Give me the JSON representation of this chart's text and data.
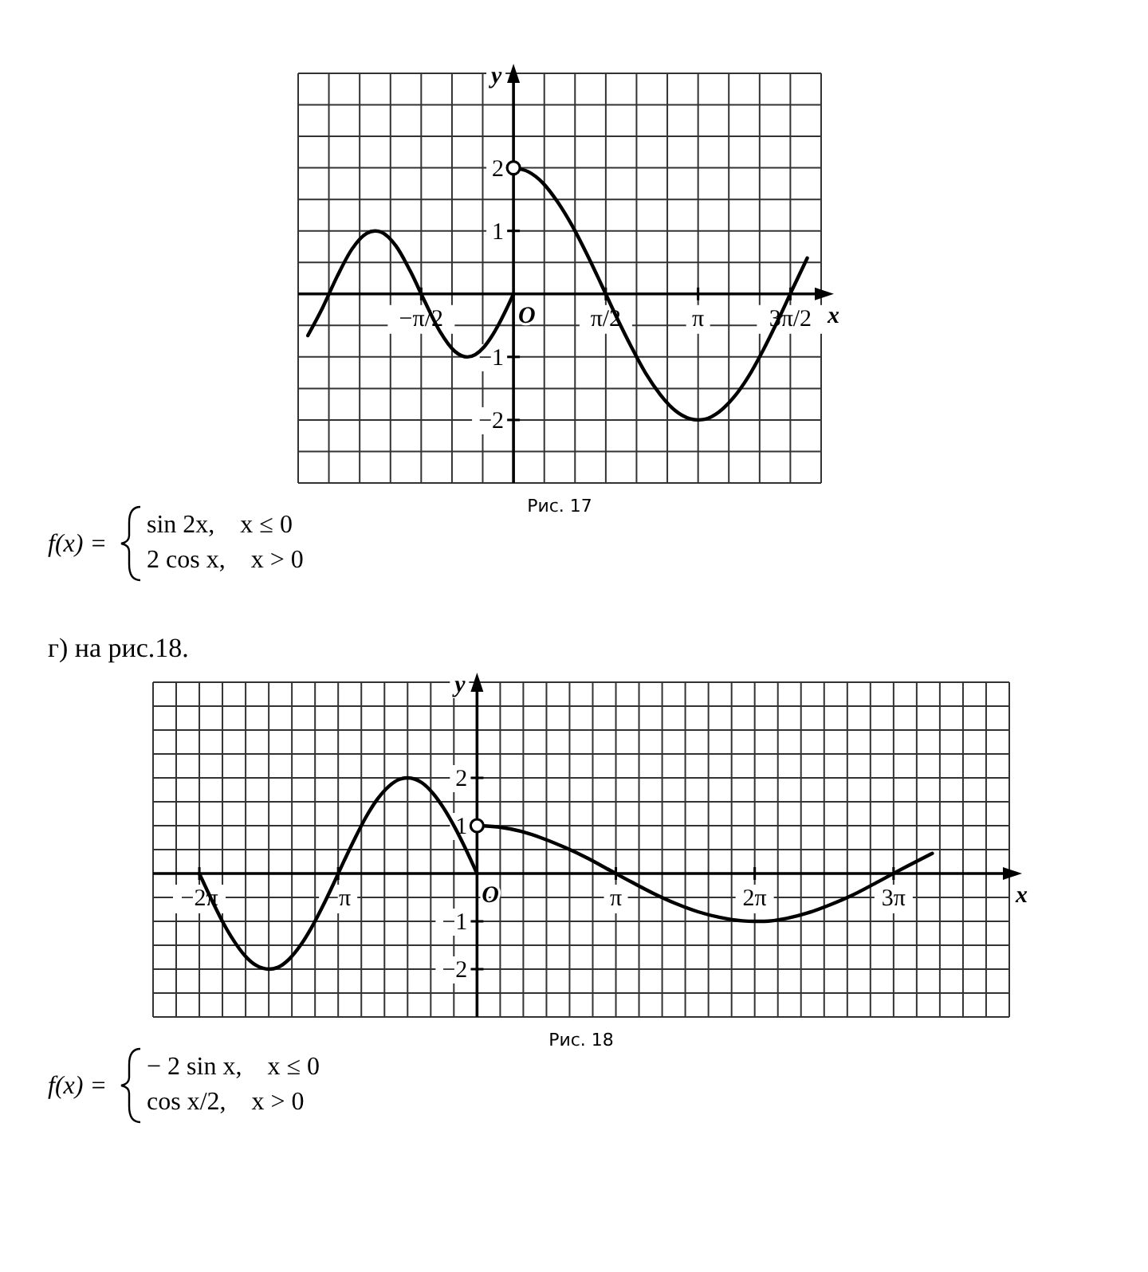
{
  "chart_data": [
    {
      "type": "line",
      "xlabel": "x",
      "ylabel": "y",
      "grid": true,
      "xlim": [
        -3.665,
        5.236
      ],
      "ylim": [
        -3,
        3.5
      ],
      "xticks": [
        {
          "value": -3.665,
          "label": null
        },
        {
          "value": -3.142,
          "label": null
        },
        {
          "value": -2.618,
          "label": null
        },
        {
          "value": -2.094,
          "label": null
        },
        {
          "value": -1.571,
          "label": "−π/2"
        },
        {
          "value": -1.047,
          "label": null
        },
        {
          "value": -0.524,
          "label": null
        },
        {
          "value": 0,
          "label": null
        },
        {
          "value": 0.524,
          "label": null
        },
        {
          "value": 1.047,
          "label": null
        },
        {
          "value": 1.571,
          "label": "π/2"
        },
        {
          "value": 2.094,
          "label": null
        },
        {
          "value": 2.618,
          "label": null
        },
        {
          "value": 3.142,
          "label": "π"
        },
        {
          "value": 3.665,
          "label": null
        },
        {
          "value": 4.189,
          "label": null
        },
        {
          "value": 4.712,
          "label": "3π/2"
        },
        {
          "value": 5.236,
          "label": null
        }
      ],
      "yticks": [
        {
          "value": -3,
          "label": null
        },
        {
          "value": -2.5,
          "label": null
        },
        {
          "value": -2,
          "label": "−2"
        },
        {
          "value": -1.5,
          "label": null
        },
        {
          "value": -1,
          "label": "−1"
        },
        {
          "value": -0.5,
          "label": null
        },
        {
          "value": 0,
          "label": null
        },
        {
          "value": 0.5,
          "label": null
        },
        {
          "value": 1,
          "label": "1"
        },
        {
          "value": 1.5,
          "label": null
        },
        {
          "value": 2,
          "label": "2"
        },
        {
          "value": 2.5,
          "label": null
        },
        {
          "value": 3,
          "label": null
        },
        {
          "value": 3.5,
          "label": null
        }
      ],
      "series": [
        {
          "color": "#000000",
          "x": [
            -3.5,
            -3.25,
            -3.0,
            -2.75,
            -2.5,
            -2.356,
            -2.25,
            -2.0,
            -1.75,
            -1.5,
            -1.25,
            -1.0,
            -0.785,
            -0.5,
            -0.375,
            -0.25,
            -0.125,
            0
          ],
          "values": [
            -0.66,
            -0.22,
            0.28,
            0.71,
            0.96,
            1.0,
            0.98,
            0.76,
            0.35,
            -0.14,
            -0.6,
            -0.91,
            -1.0,
            -0.84,
            -0.68,
            -0.48,
            -0.25,
            0
          ]
        },
        {
          "color": "#000000",
          "x": [
            0,
            0.25,
            0.5,
            0.75,
            1.0,
            1.25,
            1.5,
            1.75,
            2.0,
            2.25,
            2.5,
            2.75,
            3.0,
            3.142,
            3.25,
            3.5,
            3.75,
            4.0,
            4.25,
            4.5,
            4.75,
            5.0
          ],
          "values": [
            2,
            1.94,
            1.76,
            1.46,
            1.08,
            0.63,
            0.14,
            -0.36,
            -0.83,
            -1.26,
            -1.6,
            -1.85,
            -1.98,
            -2,
            -1.99,
            -1.87,
            -1.64,
            -1.31,
            -0.89,
            -0.42,
            0.08,
            0.57
          ]
        },
        {
          "type": "scatter",
          "color": "#000000",
          "x": [
            0
          ],
          "values": [
            2
          ]
        }
      ],
      "annotations": [
        {
          "text": "O",
          "x": 0,
          "y": 0
        },
        "Рис. 17",
        "f(x) =",
        "sin 2x,    x ≤ 0",
        "2 cos x,    x > 0"
      ]
    },
    {
      "type": "line",
      "title": "г) на рис.18.",
      "xlabel": "x",
      "ylabel": "y",
      "grid": true,
      "xlim": [
        -7.33,
        12.043
      ],
      "ylim": [
        -3,
        4
      ],
      "xticks": [
        {
          "value": -7.33,
          "label": null
        },
        {
          "value": -6.807,
          "label": null
        },
        {
          "value": -6.283,
          "label": "−2π"
        },
        {
          "value": -5.76,
          "label": null
        },
        {
          "value": -5.236,
          "label": null
        },
        {
          "value": -4.712,
          "label": null
        },
        {
          "value": -4.189,
          "label": null
        },
        {
          "value": -3.665,
          "label": null
        },
        {
          "value": -3.142,
          "label": "−π"
        },
        {
          "value": -2.618,
          "label": null
        },
        {
          "value": -2.094,
          "label": null
        },
        {
          "value": -1.571,
          "label": null
        },
        {
          "value": -1.047,
          "label": null
        },
        {
          "value": -0.524,
          "label": null
        },
        {
          "value": 0,
          "label": null
        },
        {
          "value": 0.524,
          "label": null
        },
        {
          "value": 1.047,
          "label": null
        },
        {
          "value": 1.571,
          "label": null
        },
        {
          "value": 2.094,
          "label": null
        },
        {
          "value": 2.618,
          "label": null
        },
        {
          "value": 3.142,
          "label": "π"
        },
        {
          "value": 3.665,
          "label": null
        },
        {
          "value": 4.189,
          "label": null
        },
        {
          "value": 4.712,
          "label": null
        },
        {
          "value": 5.236,
          "label": null
        },
        {
          "value": 5.76,
          "label": null
        },
        {
          "value": 6.283,
          "label": "2π"
        },
        {
          "value": 6.807,
          "label": null
        },
        {
          "value": 7.33,
          "label": null
        },
        {
          "value": 7.854,
          "label": null
        },
        {
          "value": 8.378,
          "label": null
        },
        {
          "value": 8.901,
          "label": null
        },
        {
          "value": 9.425,
          "label": "3π"
        },
        {
          "value": 9.948,
          "label": null
        },
        {
          "value": 10.472,
          "label": null
        },
        {
          "value": 10.996,
          "label": null
        },
        {
          "value": 11.519,
          "label": null
        },
        {
          "value": 12.043,
          "label": null
        }
      ],
      "yticks": [
        {
          "value": -3,
          "label": null
        },
        {
          "value": -2.5,
          "label": null
        },
        {
          "value": -2,
          "label": "−2"
        },
        {
          "value": -1.5,
          "label": null
        },
        {
          "value": -1,
          "label": "−1"
        },
        {
          "value": -0.5,
          "label": null
        },
        {
          "value": 0,
          "label": null
        },
        {
          "value": 0.5,
          "label": null
        },
        {
          "value": 1,
          "label": "1"
        },
        {
          "value": 1.5,
          "label": null
        },
        {
          "value": 2,
          "label": "2"
        },
        {
          "value": 2.5,
          "label": null
        },
        {
          "value": 3,
          "label": null
        },
        {
          "value": 3.5,
          "label": null
        },
        {
          "value": 4,
          "label": null
        }
      ],
      "series": [
        {
          "color": "#000000",
          "x": [
            -6.283,
            -6.0,
            -5.75,
            -5.5,
            -5.25,
            -5.0,
            -4.712,
            -4.5,
            -4.25,
            -4.0,
            -3.75,
            -3.5,
            -3.25,
            -3.0,
            -2.75,
            -2.5,
            -2.25,
            -2.0,
            -1.75,
            -1.571,
            -1.25,
            -1.0,
            -0.75,
            -0.5,
            -0.25,
            0
          ],
          "values": [
            0,
            -0.56,
            -1.02,
            -1.41,
            -1.72,
            -1.92,
            -2,
            -1.96,
            -1.79,
            -1.51,
            -1.14,
            -0.7,
            -0.22,
            0.28,
            0.76,
            1.2,
            1.56,
            1.82,
            1.97,
            2,
            1.9,
            1.68,
            1.36,
            0.96,
            0.5,
            0
          ]
        },
        {
          "color": "#000000",
          "x": [
            0,
            0.5,
            1,
            1.5,
            2,
            2.5,
            3,
            3.5,
            4,
            4.5,
            5,
            5.5,
            6,
            6.283,
            6.5,
            7,
            7.5,
            8,
            8.5,
            9,
            9.5,
            10,
            10.3
          ],
          "values": [
            1,
            0.97,
            0.88,
            0.73,
            0.54,
            0.32,
            0.07,
            -0.18,
            -0.42,
            -0.63,
            -0.8,
            -0.92,
            -0.99,
            -1,
            -1,
            -0.94,
            -0.82,
            -0.65,
            -0.45,
            -0.21,
            0.04,
            0.28,
            0.42
          ]
        },
        {
          "type": "scatter",
          "color": "#000000",
          "x": [
            0
          ],
          "values": [
            1
          ]
        }
      ],
      "annotations": [
        {
          "text": "O",
          "x": 0,
          "y": 0
        },
        "Рис. 18",
        "f(x) =",
        "− 2 sin x,    x ≤ 0",
        "cos x/2,    x > 0"
      ]
    }
  ]
}
